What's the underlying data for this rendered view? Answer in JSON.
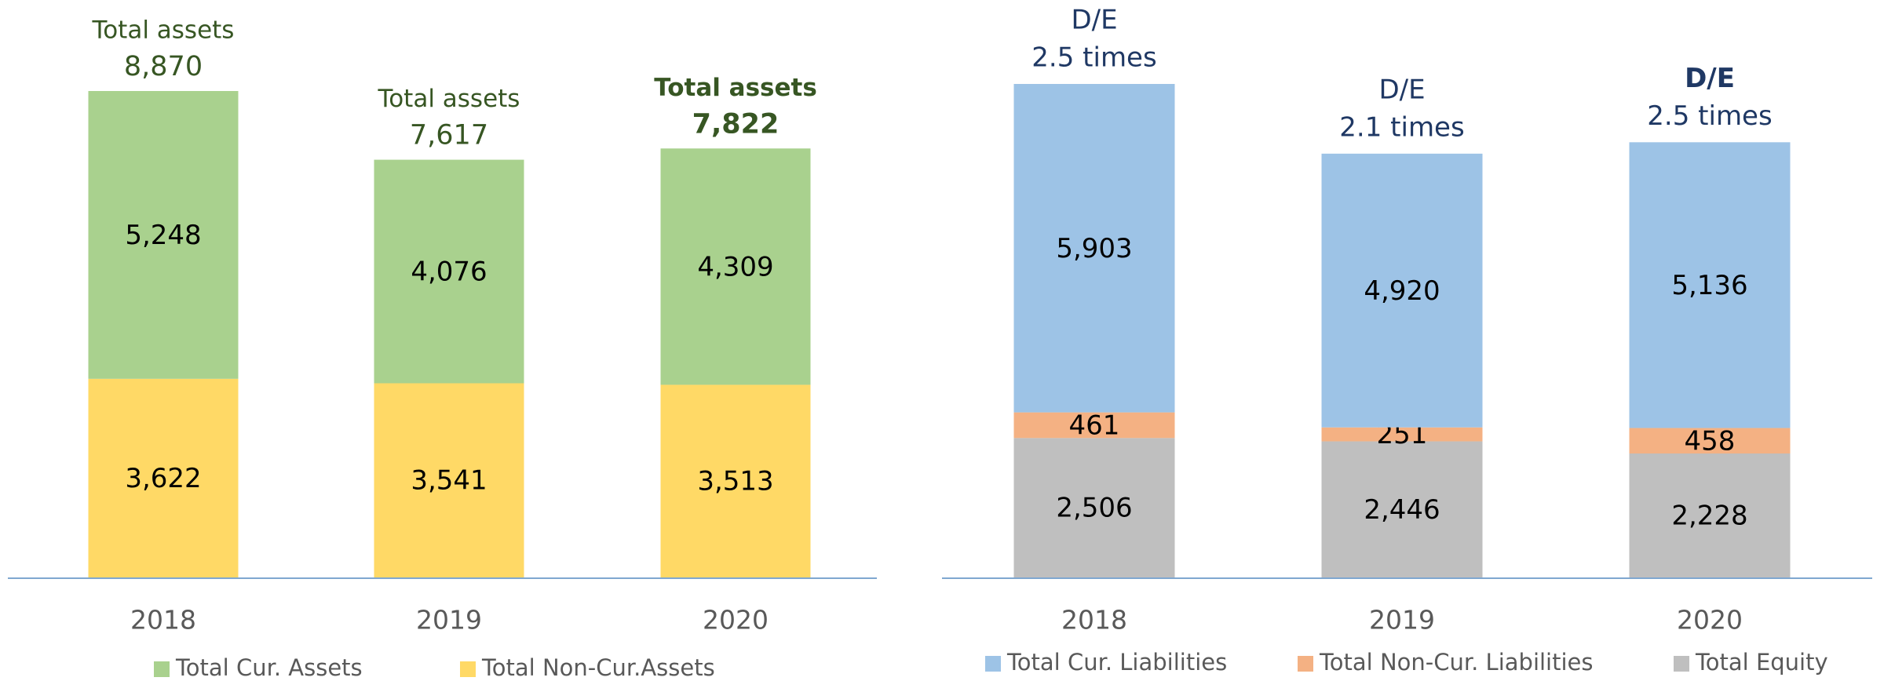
{
  "chart_data": [
    {
      "type": "stacked_bar",
      "categories": [
        "2018",
        "2019",
        "2020"
      ],
      "series": [
        {
          "name": "Total Cur. Assets",
          "color": "#a9d18e",
          "values": [
            5248,
            4076,
            4309
          ],
          "value_labels": [
            "5,248",
            "4,076",
            "4,309"
          ]
        },
        {
          "name": "Total Non-Cur.Assets",
          "color": "#ffd966",
          "values": [
            3622,
            3541,
            3513
          ],
          "value_labels": [
            "3,622",
            "3,541",
            "3,513"
          ]
        }
      ],
      "annotation_caption": "Total assets",
      "totals": [
        8870,
        7617,
        7822
      ],
      "total_labels": [
        "8,870",
        "7,617",
        "7,822"
      ],
      "annotation_color": "#375623"
    },
    {
      "type": "stacked_bar",
      "categories": [
        "2018",
        "2019",
        "2020"
      ],
      "series": [
        {
          "name": "Total Cur. Liabilities",
          "color": "#9dc3e6",
          "values": [
            5903,
            4920,
            5136
          ],
          "value_labels": [
            "5,903",
            "4,920",
            "5,136"
          ]
        },
        {
          "name": "Total Non-Cur. Liabilities",
          "color": "#f4b183",
          "values": [
            461,
            251,
            458
          ]
        },
        {
          "name": "Total Equity",
          "color": "#bfbfbf",
          "values": [
            2506,
            2446,
            2228
          ],
          "value_labels": [
            "2,506",
            "2,446",
            "2,228"
          ]
        }
      ],
      "annotation_caption": "D/E",
      "ratios": [
        2.5,
        2.1,
        2.5
      ],
      "ratio_labels": [
        "2.5 times",
        "2.1 times",
        "2.5 times"
      ],
      "annotation_color": "#1f3864"
    }
  ]
}
